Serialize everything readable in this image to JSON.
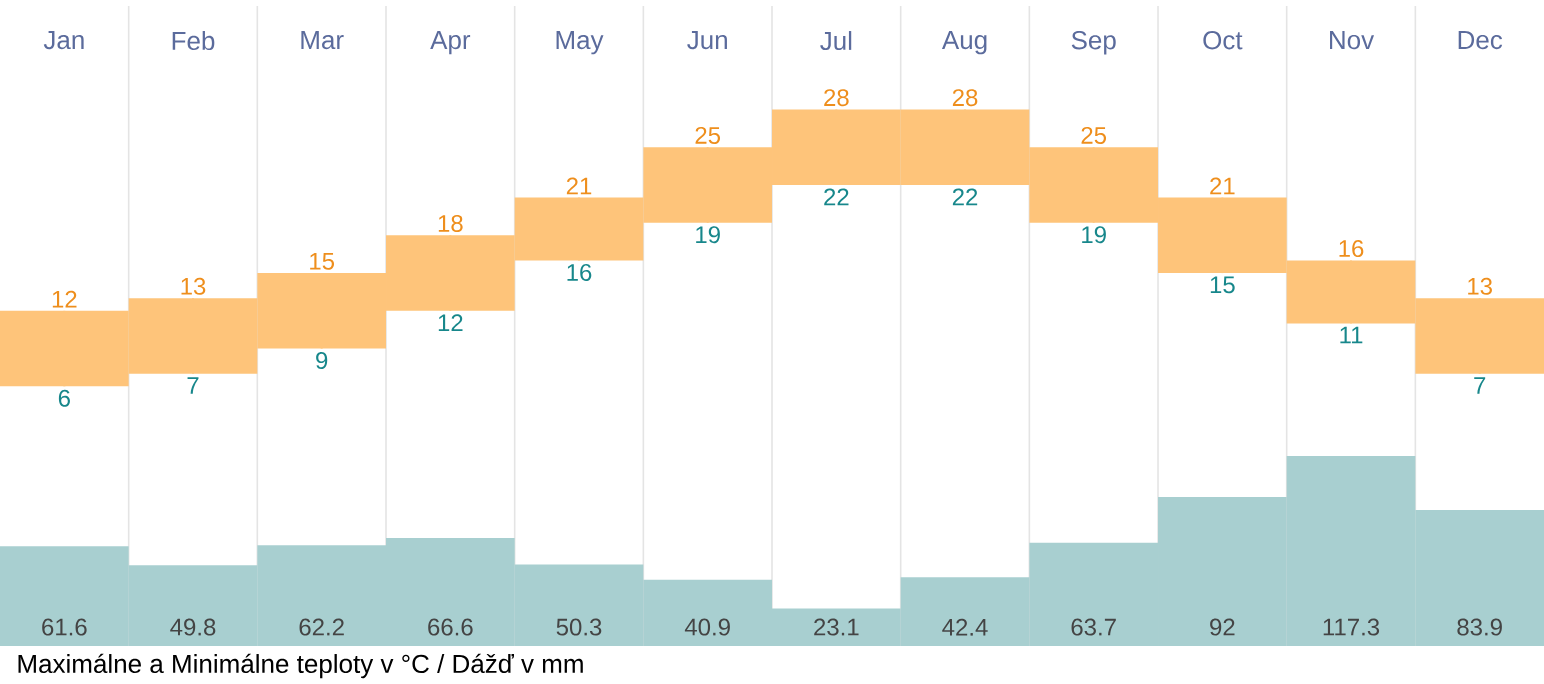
{
  "chart_data": [
    {
      "type": "candlestick",
      "categories": [
        "Jan",
        "Feb",
        "Mar",
        "Apr",
        "May",
        "Jun",
        "Jul",
        "Aug",
        "Sep",
        "Oct",
        "Nov",
        "Dec"
      ],
      "color": "#fec47a",
      "ohlc": [
        [
          6,
          12,
          6,
          12
        ],
        [
          7,
          13,
          7,
          13
        ],
        [
          9,
          15,
          9,
          15
        ],
        [
          12,
          18,
          12,
          18
        ],
        [
          16,
          21,
          16,
          21
        ],
        [
          19,
          25,
          19,
          25
        ],
        [
          22,
          28,
          22,
          28
        ],
        [
          22,
          28,
          22,
          28
        ],
        [
          19,
          25,
          19,
          25
        ],
        [
          15,
          21,
          15,
          21
        ],
        [
          11,
          16,
          11,
          16
        ],
        [
          7,
          13,
          7,
          13
        ]
      ],
      "tick_labels": "x",
      "grid": "x",
      "annotations": [
        {
          "text": "12",
          "x": "Jan",
          "y": 12
        },
        {
          "text": "13",
          "x": "Feb",
          "y": 13
        },
        {
          "text": "15",
          "x": "Mar",
          "y": 15
        },
        {
          "text": "18",
          "x": "Apr",
          "y": 18
        },
        {
          "text": "21",
          "x": "May",
          "y": 21
        },
        {
          "text": "25",
          "x": "Jun",
          "y": 25
        },
        {
          "text": "28",
          "x": "Jul",
          "y": 28
        },
        {
          "text": "28",
          "x": "Aug",
          "y": 28
        },
        {
          "text": "25",
          "x": "Sep",
          "y": 25
        },
        {
          "text": "21",
          "x": "Oct",
          "y": 21
        },
        {
          "text": "16",
          "x": "Nov",
          "y": 16
        },
        {
          "text": "13",
          "x": "Dec",
          "y": 13
        },
        {
          "text": "6",
          "x": "Jan",
          "y": 6
        },
        {
          "text": "7",
          "x": "Feb",
          "y": 7
        },
        {
          "text": "9",
          "x": "Mar",
          "y": 9
        },
        {
          "text": "12",
          "x": "Apr",
          "y": 12
        },
        {
          "text": "16",
          "x": "May",
          "y": 16
        },
        {
          "text": "19",
          "x": "Jun",
          "y": 19
        },
        {
          "text": "22",
          "x": "Jul",
          "y": 22
        },
        {
          "text": "22",
          "x": "Aug",
          "y": 22
        },
        {
          "text": "19",
          "x": "Sep",
          "y": 19
        },
        {
          "text": "15",
          "x": "Oct",
          "y": 15
        },
        {
          "text": "11",
          "x": "Nov",
          "y": 11
        },
        {
          "text": "7",
          "x": "Dec",
          "y": 7
        }
      ]
    },
    {
      "type": "bar",
      "categories": [
        null,
        null,
        null,
        null,
        null,
        null,
        null,
        null,
        null,
        null,
        null,
        null
      ],
      "color": "#a8cfd0",
      "values": [
        61.6,
        49.8,
        62.2,
        66.6,
        50.3,
        40.9,
        23.1,
        42.4,
        63.7,
        92,
        117.3,
        83.9
      ],
      "data_labels": true,
      "tick_labels": false,
      "grid": "x",
      "annotations": [
        "Maximálne a Minimálne teploty v °C / Dážď v mm"
      ]
    }
  ]
}
